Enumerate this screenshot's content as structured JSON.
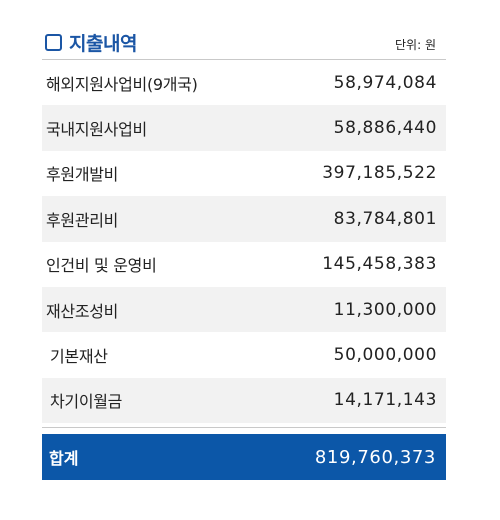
{
  "title": "지출내역",
  "unit_label": "단위: 원",
  "colors": {
    "accent": "#1b56a5",
    "total_bg": "#0c57a8",
    "alt_row_bg": "#f2f2f2"
  },
  "rows": [
    {
      "label": "해외지원사업비(9개국)",
      "value": "58,974,084"
    },
    {
      "label": "국내지원사업비",
      "value": "58,886,440"
    },
    {
      "label": "후원개발비",
      "value": "397,185,522"
    },
    {
      "label": "후원관리비",
      "value": "83,784,801"
    },
    {
      "label": "인건비 및 운영비",
      "value": "145,458,383"
    },
    {
      "label": "재산조성비",
      "value": "11,300,000"
    },
    {
      "label": "기본재산",
      "value": "50,000,000"
    },
    {
      "label": "차기이월금",
      "value": "14,171,143"
    }
  ],
  "total": {
    "label": "합계",
    "value": "819,760,373"
  }
}
